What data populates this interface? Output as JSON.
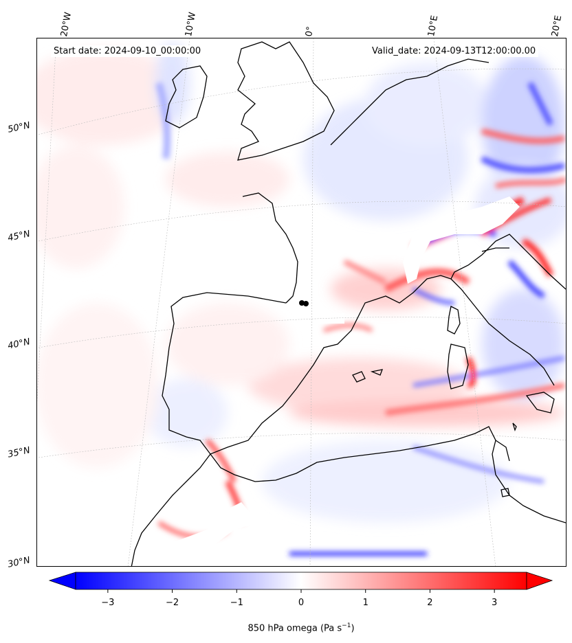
{
  "header": {
    "start_date": "Start date: 2024-09-10_00:00:00",
    "valid_date": "Valid_date: 2024-09-13T12:00:00.00"
  },
  "graticule": {
    "lon_labels": [
      "20°W",
      "10°W",
      "0°",
      "10°E",
      "20°E"
    ],
    "lat_labels": [
      "50°N",
      "45°N",
      "40°N",
      "35°N",
      "30°N"
    ]
  },
  "colorbar": {
    "ticks": [
      "−3",
      "−2",
      "−1",
      "0",
      "1",
      "2",
      "3"
    ],
    "range": [
      -3.5,
      3.5
    ],
    "title": "850 hPa omega (Pa s",
    "title_sup": "−1",
    "title_end": ")",
    "colors": {
      "low": "#0000ff",
      "mid": "#ffffff",
      "high": "#ff0000"
    }
  },
  "map": {
    "field": "850 hPa omega",
    "coastline_color": "#000000",
    "gridline_color": "#b0b0b0",
    "station_marker_color": "#000000"
  }
}
